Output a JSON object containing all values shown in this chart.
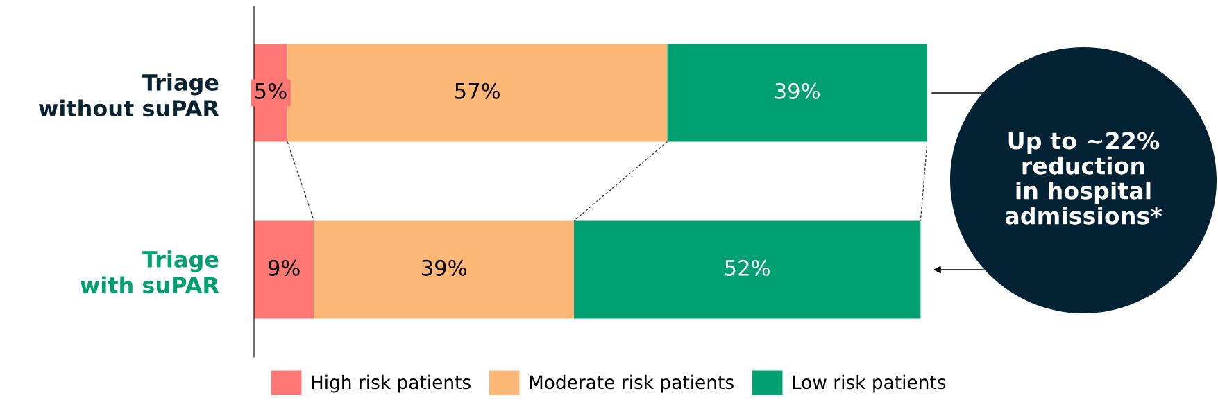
{
  "chart_data": {
    "type": "bar",
    "orientation": "horizontal",
    "stacked": true,
    "categories": [
      "Triage\nwithout suPAR",
      "Triage\nwith suPAR"
    ],
    "series": [
      {
        "name": "High risk patients",
        "color": "#fd7874",
        "values": [
          5,
          9
        ],
        "value_labels": [
          "5%",
          "9%"
        ]
      },
      {
        "name": "Moderate risk patients",
        "color": "#fdb777",
        "values": [
          57,
          39
        ],
        "value_labels": [
          "57%",
          "39%"
        ]
      },
      {
        "name": "Low risk patients",
        "color": "#00a070",
        "values": [
          39,
          52
        ],
        "value_labels": [
          "39%",
          "52%"
        ]
      }
    ],
    "legend": "bottom",
    "grid": false,
    "annotations": [
      "Up to ~22%\nreduction\nin hospital\nadmissions*"
    ]
  }
}
